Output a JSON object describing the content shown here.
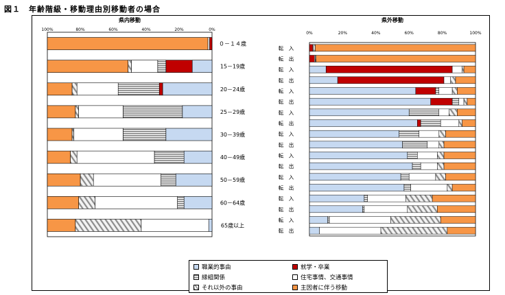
{
  "title": "図１　年齢階級・移動理由別移動者の場合",
  "chart_data": {
    "type": "bar",
    "stacked": true,
    "orientation": "horizontal",
    "xlim": [
      0,
      100
    ],
    "categories": [
      {
        "key": "occupation",
        "label": "職業的事由",
        "color": "#c6d9f1",
        "pattern": "solid"
      },
      {
        "key": "school",
        "label": "就学・卒業",
        "color": "#c00000",
        "pattern": "solid"
      },
      {
        "key": "marriage",
        "label": "縁組関係",
        "color": "#a6a6a6",
        "pattern": "hstripe"
      },
      {
        "key": "housing",
        "label": "住宅事情、交通事情",
        "color": "#ffffff",
        "pattern": "solid"
      },
      {
        "key": "other",
        "label": "それ以外の事由",
        "color": "#d9d9d9",
        "pattern": "diag"
      },
      {
        "key": "family",
        "label": "主因者に伴う移動",
        "color": "#f79646",
        "pattern": "solid"
      }
    ],
    "age_groups": [
      "０－１４歳",
      "15－19歳",
      "20－24歳",
      "25－29歳",
      "30－39歳",
      "40－49歳",
      "50－59歳",
      "60－64歳",
      "65歳以上"
    ],
    "in_pref": {
      "title": "県内移動",
      "ticks": [
        "100%",
        "80%",
        "60%",
        "40%",
        "20%",
        "0%"
      ],
      "values": [
        [
          0,
          1.5,
          0,
          1,
          0,
          97.5
        ],
        [
          12,
          16,
          5,
          16,
          2,
          49
        ],
        [
          30,
          2,
          25,
          25,
          3,
          15
        ],
        [
          18,
          0,
          36,
          27,
          2,
          17
        ],
        [
          28,
          0,
          26,
          30,
          1,
          15
        ],
        [
          17,
          0,
          18,
          47,
          4,
          14
        ],
        [
          22,
          0,
          9,
          41,
          8,
          20
        ],
        [
          17,
          0,
          4,
          50,
          10,
          19
        ],
        [
          2,
          0,
          0,
          41,
          40,
          17
        ]
      ]
    },
    "out_pref": {
      "title": "県外移動",
      "ticks": [
        "0%",
        "20%",
        "40%",
        "60%",
        "80%",
        "100%"
      ],
      "rows": [
        {
          "age": "０－１４歳",
          "direction": "転　入",
          "values": [
            0,
            2,
            0,
            0.5,
            1,
            96.5
          ]
        },
        {
          "age": "０－１４歳",
          "direction": "転　出",
          "values": [
            0,
            3,
            0,
            0.5,
            0.5,
            96
          ]
        },
        {
          "age": "15－19歳",
          "direction": "転　入",
          "values": [
            10,
            76,
            0,
            6,
            1,
            7
          ]
        },
        {
          "age": "15－19歳",
          "direction": "転　出",
          "values": [
            17,
            64,
            0,
            4,
            3,
            12
          ]
        },
        {
          "age": "20－24歳",
          "direction": "転　入",
          "values": [
            64,
            12,
            2,
            8,
            3,
            11
          ]
        },
        {
          "age": "20－24歳",
          "direction": "転　出",
          "values": [
            73,
            13,
            4,
            3,
            2,
            5
          ]
        },
        {
          "age": "25－29歳",
          "direction": "転　入",
          "values": [
            60,
            0,
            18,
            6,
            5,
            11
          ]
        },
        {
          "age": "25－29歳",
          "direction": "転　出",
          "values": [
            65,
            2,
            12,
            11,
            2,
            8
          ]
        },
        {
          "age": "30－39歳",
          "direction": "転　入",
          "values": [
            54,
            0,
            12,
            12,
            4,
            18
          ]
        },
        {
          "age": "30－39歳",
          "direction": "転　出",
          "values": [
            56,
            0,
            15,
            7,
            3,
            19
          ]
        },
        {
          "age": "40－49歳",
          "direction": "転　入",
          "values": [
            59,
            0,
            6,
            12,
            4,
            19
          ]
        },
        {
          "age": "40－49歳",
          "direction": "転　出",
          "values": [
            62,
            0,
            5,
            10,
            4,
            19
          ]
        },
        {
          "age": "50－59歳",
          "direction": "転　入",
          "values": [
            55,
            0,
            5,
            16,
            6,
            18
          ]
        },
        {
          "age": "50－59歳",
          "direction": "転　出",
          "values": [
            57,
            0,
            4,
            22,
            3,
            14
          ]
        },
        {
          "age": "60－64歳",
          "direction": "転　入",
          "values": [
            33,
            0,
            2,
            23,
            16,
            26
          ]
        },
        {
          "age": "60－64歳",
          "direction": "転　出",
          "values": [
            32,
            0,
            1,
            26,
            18,
            23
          ]
        },
        {
          "age": "65歳以上",
          "direction": "転　入",
          "values": [
            11,
            0,
            1,
            37,
            30,
            21
          ]
        },
        {
          "age": "65歳以上",
          "direction": "転　出",
          "values": [
            6,
            0,
            0,
            37,
            40,
            17
          ]
        }
      ]
    }
  }
}
